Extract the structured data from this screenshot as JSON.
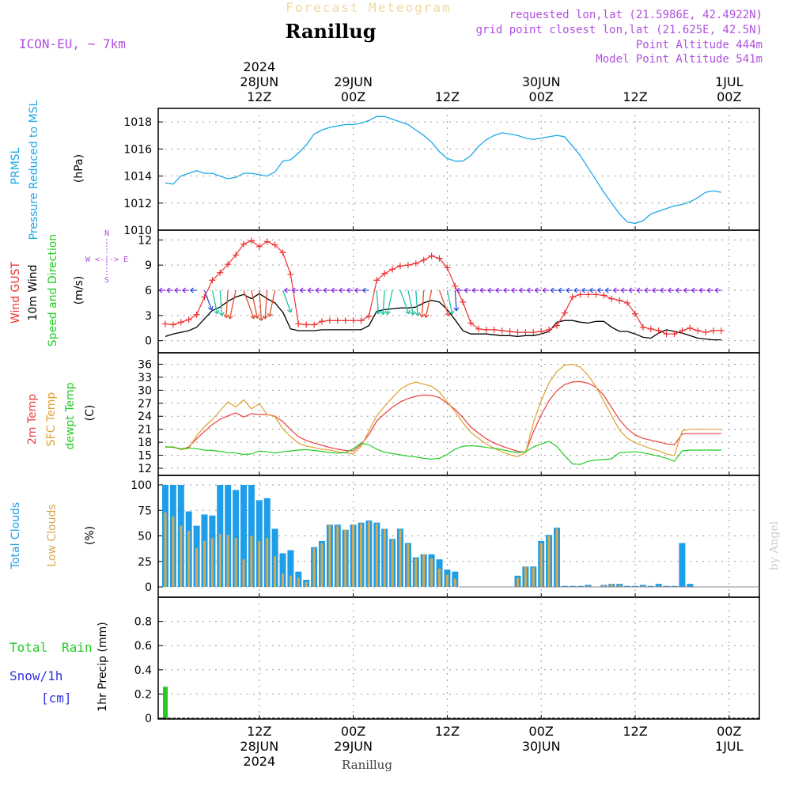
{
  "header": {
    "forecast_title": "Forecast Meteogram",
    "location": "Ranillug",
    "model": "ICON-EU, ~ 7km",
    "requested": "requested lon,lat (21.5986E, 42.4922N)",
    "grid_point": "grid point closest lon,lat (21.625E, 42.5N)",
    "point_altitude": "Point Altitude 444m",
    "model_altitude": "Model Point Altitude 541m",
    "footer_location": "Ranillug",
    "credit": "by Angel"
  },
  "time_axis": {
    "top_labels": [
      {
        "step": 12,
        "lines": [
          "2024",
          "28JUN",
          "12Z"
        ]
      },
      {
        "step": 24,
        "lines": [
          "29JUN",
          "00Z"
        ]
      },
      {
        "step": 36,
        "lines": [
          "12Z"
        ]
      },
      {
        "step": 48,
        "lines": [
          "30JUN",
          "00Z"
        ]
      },
      {
        "step": 60,
        "lines": [
          "12Z"
        ]
      },
      {
        "step": 72,
        "lines": [
          "1JUL",
          "00Z"
        ]
      }
    ],
    "bottom_labels": [
      {
        "step": 12,
        "lines": [
          "12Z",
          "28JUN",
          "2024"
        ]
      },
      {
        "step": 24,
        "lines": [
          "00Z",
          "29JUN"
        ]
      },
      {
        "step": 36,
        "lines": [
          "12Z"
        ]
      },
      {
        "step": 48,
        "lines": [
          "00Z",
          "30JUN"
        ]
      },
      {
        "step": 60,
        "lines": [
          "12Z"
        ]
      },
      {
        "step": 72,
        "lines": [
          "00Z",
          "1JUL"
        ]
      }
    ],
    "start": "2024-06-28 01Z",
    "end": "2024-07-01 05Z",
    "step_hours": 1
  },
  "panels": {
    "pressure": {
      "left_labels": [
        "PRMSL",
        "Pressure Reduced to MSL"
      ],
      "unit": "(hPa)"
    },
    "wind": {
      "left_labels": [
        "Wind GUST",
        "10m Wind",
        "Speed and Direction"
      ],
      "unit": "(m/s)",
      "compass": "W <-|-> E",
      "compass_ns": [
        "N",
        "S"
      ]
    },
    "temp": {
      "left_labels": [
        "2m Temp",
        "SFC Temp",
        "dewpt Temp"
      ],
      "unit": "(C)"
    },
    "clouds": {
      "left_labels": [
        "Total Clouds",
        "Low Clouds"
      ],
      "unit": "(%)"
    },
    "precip": {
      "left_labels": [
        "Total",
        "Rain",
        "Snow/1h",
        "[cm]"
      ],
      "unit": "1hr Precip (mm)"
    }
  },
  "colors": {
    "pressure": "#1ea8e8",
    "gust": "#ee3333",
    "wind": "#000000",
    "temp2m": "#e84040",
    "sfc": "#e0a030",
    "dewpt": "#22cc22",
    "total_cloud": "#1e9ee8",
    "low_cloud": "#d8a850",
    "rain": "#22cc22",
    "snow": "#3333dd",
    "header_violet": "#b050e0"
  },
  "chart_data": [
    {
      "type": "line",
      "title": "PRMSL Pressure Reduced to MSL",
      "ylabel": "(hPa)",
      "ylim": [
        1010,
        1019
      ],
      "yticks": [
        1010,
        1012,
        1014,
        1016,
        1018
      ],
      "x_start_step": 0,
      "values": [
        1013.5,
        1013.4,
        1014.0,
        1014.2,
        1014.4,
        1014.2,
        1014.2,
        1014.0,
        1013.8,
        1013.9,
        1014.2,
        1014.2,
        1014.1,
        1014.0,
        1014.3,
        1015.1,
        1015.2,
        1015.7,
        1016.3,
        1017.1,
        1017.4,
        1017.6,
        1017.7,
        1017.8,
        1017.8,
        1017.9,
        1018.1,
        1018.4,
        1018.4,
        1018.2,
        1018.0,
        1017.8,
        1017.4,
        1017.0,
        1016.5,
        1015.8,
        1015.3,
        1015.1,
        1015.1,
        1015.5,
        1016.2,
        1016.7,
        1017.0,
        1017.2,
        1017.1,
        1017.0,
        1016.8,
        1016.7,
        1016.8,
        1016.9,
        1017.0,
        1016.9,
        1016.2,
        1015.5,
        1014.6,
        1013.7,
        1012.8,
        1012.0,
        1011.2,
        1010.6,
        1010.5,
        1010.7,
        1011.2,
        1011.4,
        1011.6,
        1011.8,
        1011.9,
        1012.1,
        1012.4,
        1012.8,
        1012.9,
        1012.8
      ]
    },
    {
      "type": "line",
      "title": "Wind GUST / 10m Wind Speed and Direction",
      "ylabel": "(m/s)",
      "ylim": [
        -0.5,
        12.5
      ],
      "yticks": [
        0,
        3,
        6,
        9,
        12
      ],
      "x_start_step": 0,
      "series": [
        {
          "name": "Wind GUST",
          "values": [
            2.0,
            1.9,
            2.2,
            2.5,
            3.1,
            5.2,
            7.2,
            8.1,
            9.1,
            10.2,
            11.5,
            11.9,
            11.2,
            11.8,
            11.4,
            10.5,
            7.9,
            2.0,
            1.9,
            1.9,
            2.3,
            2.4,
            2.4,
            2.4,
            2.4,
            2.4,
            2.9,
            7.2,
            8.0,
            8.5,
            8.9,
            9.0,
            9.2,
            9.6,
            10.1,
            9.8,
            8.7,
            6.5,
            4.6,
            2.1,
            1.4,
            1.3,
            1.3,
            1.2,
            1.1,
            1.0,
            1.0,
            1.0,
            1.1,
            1.3,
            1.8,
            3.3,
            5.2,
            5.5,
            5.5,
            5.5,
            5.4,
            5.0,
            4.8,
            4.5,
            3.2,
            1.6,
            1.4,
            1.2,
            0.8,
            0.8,
            1.2,
            1.5,
            1.2,
            1.0,
            1.2,
            1.2
          ]
        },
        {
          "name": "10m Wind",
          "values": [
            0.5,
            0.8,
            1.0,
            1.2,
            1.6,
            2.6,
            3.6,
            4.0,
            4.7,
            5.2,
            5.5,
            5.0,
            5.6,
            5.0,
            4.5,
            3.4,
            1.4,
            1.2,
            1.2,
            1.2,
            1.3,
            1.3,
            1.3,
            1.3,
            1.3,
            1.3,
            1.8,
            3.5,
            3.7,
            3.8,
            3.9,
            3.9,
            4.0,
            4.5,
            4.8,
            4.6,
            3.7,
            2.5,
            1.2,
            0.8,
            0.8,
            0.8,
            0.7,
            0.6,
            0.6,
            0.5,
            0.6,
            0.6,
            0.8,
            1.1,
            2.2,
            2.4,
            2.4,
            2.2,
            2.1,
            2.3,
            2.3,
            1.6,
            1.1,
            1.1,
            0.8,
            0.4,
            0.3,
            0.9,
            1.3,
            1.1,
            0.9,
            0.6,
            0.3,
            0.2,
            0.1,
            0.1
          ]
        }
      ]
    },
    {
      "type": "line",
      "title": "2m Temp / SFC Temp / dewpt Temp",
      "ylabel": "(C)",
      "ylim": [
        12,
        37
      ],
      "yticks": [
        12,
        15,
        18,
        21,
        24,
        27,
        30,
        33,
        36
      ],
      "x_start_step": 0,
      "series": [
        {
          "name": "2m Temp",
          "values": [
            16.9,
            16.9,
            16.3,
            16.9,
            18.8,
            20.5,
            22.1,
            23.3,
            24.1,
            24.8,
            23.8,
            24.6,
            24.4,
            24.4,
            24.0,
            22.8,
            20.9,
            19.3,
            18.4,
            17.8,
            17.3,
            16.8,
            16.4,
            16.1,
            16.0,
            17.5,
            19.8,
            22.9,
            24.6,
            26.1,
            27.3,
            28.1,
            28.6,
            28.9,
            28.8,
            28.3,
            27.0,
            25.6,
            23.7,
            21.5,
            20.1,
            18.8,
            17.8,
            17.1,
            16.5,
            15.9,
            15.7,
            20.4,
            24.3,
            27.6,
            29.9,
            31.3,
            31.9,
            32.0,
            31.6,
            30.7,
            28.8,
            26.0,
            23.2,
            21.1,
            19.7,
            18.9,
            18.5,
            18.1,
            17.6,
            17.4,
            19.9,
            20.0,
            20.0,
            20.0,
            20.0,
            20.0
          ]
        },
        {
          "name": "SFC Temp",
          "values": [
            16.8,
            17.0,
            16.3,
            16.6,
            19.5,
            21.6,
            23.2,
            25.3,
            27.3,
            26.1,
            27.8,
            25.7,
            26.9,
            24.4,
            23.9,
            21.1,
            19.3,
            17.8,
            17.1,
            16.8,
            16.4,
            16.2,
            15.8,
            15.6,
            15.3,
            17.1,
            20.6,
            24.1,
            26.3,
            28.3,
            30.2,
            31.3,
            31.9,
            31.4,
            30.9,
            29.6,
            27.3,
            25.1,
            22.5,
            20.3,
            18.9,
            17.6,
            16.6,
            15.8,
            15.1,
            14.7,
            15.6,
            22.5,
            27.6,
            31.7,
            34.3,
            35.8,
            36.0,
            35.3,
            33.4,
            30.8,
            27.5,
            24.1,
            20.8,
            18.9,
            17.9,
            17.2,
            16.5,
            16.0,
            15.3,
            14.9,
            20.6,
            21.0,
            21.0,
            21.0,
            21.0,
            21.0
          ]
        },
        {
          "name": "dewpt Temp",
          "values": [
            17.0,
            16.8,
            16.5,
            16.7,
            16.5,
            16.2,
            16.1,
            15.9,
            15.6,
            15.5,
            15.2,
            15.3,
            16.0,
            15.8,
            15.5,
            15.8,
            16.0,
            16.2,
            16.3,
            16.1,
            15.9,
            15.6,
            15.5,
            15.6,
            16.5,
            17.8,
            17.4,
            16.4,
            15.7,
            15.4,
            15.1,
            14.8,
            14.6,
            14.3,
            14.1,
            14.3,
            15.2,
            16.4,
            17.1,
            17.2,
            17.1,
            16.8,
            16.6,
            16.3,
            15.9,
            15.6,
            15.8,
            16.9,
            17.6,
            18.2,
            17.0,
            14.9,
            13.0,
            12.9,
            13.6,
            13.9,
            14.0,
            14.2,
            15.6,
            15.7,
            15.8,
            15.6,
            15.2,
            14.8,
            14.3,
            13.6,
            16.0,
            16.2,
            16.2,
            16.2,
            16.2,
            16.2
          ]
        }
      ]
    },
    {
      "type": "bar",
      "title": "Total Clouds / Low Clouds",
      "ylabel": "(%)",
      "ylim": [
        0,
        100
      ],
      "yticks": [
        0,
        25,
        50,
        75,
        100
      ],
      "x_start_step": 0,
      "series": [
        {
          "name": "Total Clouds",
          "values": [
            100,
            100,
            100,
            74,
            60,
            71,
            70,
            100,
            100,
            95,
            100,
            100,
            85,
            87,
            57,
            33,
            36,
            15,
            7,
            39,
            45,
            61,
            61,
            56,
            61,
            63,
            65,
            63,
            57,
            47,
            57,
            43,
            29,
            32,
            32,
            27,
            17,
            15,
            0,
            0,
            0,
            0,
            0,
            0,
            0,
            11,
            20,
            20,
            45,
            51,
            58,
            1,
            1,
            1,
            2,
            0,
            2,
            3,
            3,
            1,
            1,
            2,
            1,
            3,
            1,
            1,
            43,
            3,
            0,
            0,
            0,
            0
          ]
        },
        {
          "name": "Low Clouds",
          "values": [
            73,
            69,
            60,
            55,
            38,
            45,
            48,
            52,
            51,
            48,
            27,
            50,
            45,
            48,
            30,
            13,
            11,
            9,
            5,
            38,
            43,
            61,
            60,
            56,
            61,
            62,
            64,
            62,
            57,
            46,
            56,
            42,
            28,
            32,
            28,
            18,
            12,
            8,
            0,
            0,
            0,
            0,
            0,
            0,
            0,
            9,
            20,
            19,
            43,
            50,
            57,
            0,
            0,
            0,
            1,
            0,
            2,
            3,
            2,
            0,
            0,
            1,
            0,
            1,
            0,
            0,
            0,
            0,
            0,
            0,
            0,
            0
          ]
        }
      ]
    },
    {
      "type": "bar",
      "title": "1hr Precip",
      "ylabel": "1hr Precip (mm)",
      "ylim": [
        0,
        1.0
      ],
      "yticks": [
        0,
        0.2,
        0.4,
        0.6,
        0.8
      ],
      "x_start_step": 0,
      "series": [
        {
          "name": "Total Rain",
          "values": [
            0.26,
            0,
            0,
            0,
            0,
            0,
            0,
            0,
            0,
            0,
            0,
            0,
            0,
            0,
            0,
            0,
            0,
            0,
            0,
            0,
            0,
            0,
            0,
            0,
            0,
            0,
            0,
            0,
            0,
            0,
            0,
            0,
            0,
            0,
            0,
            0,
            0,
            0,
            0,
            0,
            0,
            0,
            0,
            0,
            0,
            0,
            0,
            0,
            0,
            0,
            0,
            0,
            0,
            0,
            0,
            0,
            0,
            0,
            0,
            0,
            0,
            0,
            0,
            0,
            0,
            0,
            0,
            0,
            0,
            0,
            0,
            0
          ]
        },
        {
          "name": "Snow/1h",
          "values": [
            0,
            0,
            0,
            0,
            0,
            0,
            0,
            0,
            0,
            0,
            0,
            0,
            0,
            0,
            0,
            0,
            0,
            0,
            0,
            0,
            0,
            0,
            0,
            0,
            0,
            0,
            0,
            0,
            0,
            0,
            0,
            0,
            0,
            0,
            0,
            0,
            0,
            0,
            0,
            0,
            0,
            0,
            0,
            0,
            0,
            0,
            0,
            0,
            0,
            0,
            0,
            0,
            0,
            0,
            0,
            0,
            0,
            0,
            0,
            0,
            0,
            0,
            0,
            0,
            0,
            0,
            0,
            0,
            0,
            0,
            0,
            0
          ]
        }
      ]
    }
  ]
}
